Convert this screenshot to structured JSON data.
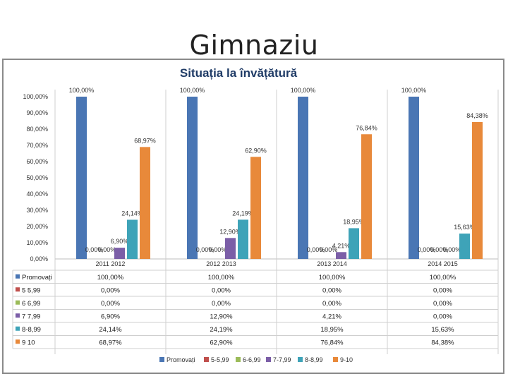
{
  "slide": {
    "title": "Gimnaziu"
  },
  "chart_data": {
    "type": "bar",
    "title": "Situația la învățătură",
    "categories": [
      "2011  2012",
      "2012  2013",
      "2013  2014",
      "2014  2015"
    ],
    "ylim": [
      0,
      100
    ],
    "yticks": [
      "0,00%",
      "10,00%",
      "20,00%",
      "30,00%",
      "40,00%",
      "50,00%",
      "60,00%",
      "70,00%",
      "80,00%",
      "90,00%",
      "100,00%"
    ],
    "grid": false,
    "legend_position": "bottom",
    "series": [
      {
        "name": "Promovați",
        "color": "#4a76b4",
        "values": [
          100.0,
          100.0,
          100.0,
          100.0
        ],
        "labels": [
          "100,00%",
          "100,00%",
          "100,00%",
          "100,00%"
        ]
      },
      {
        "name": "5-5,99",
        "color": "#c0504d",
        "values": [
          0,
          0,
          0,
          0
        ],
        "labels": [
          "0,00%",
          "0,00%",
          "0,00%",
          "0,00%"
        ]
      },
      {
        "name": "6-6,99",
        "color": "#9bbb59",
        "values": [
          0,
          0,
          0,
          0
        ],
        "labels": [
          "0,00%",
          "0,00%",
          "0,00%",
          "0,00%"
        ]
      },
      {
        "name": "7-7,99",
        "color": "#7b5ea7",
        "values": [
          6.9,
          12.9,
          4.21,
          0.0
        ],
        "labels": [
          "6,90%",
          "12,90%",
          "4,21%",
          "0,00%"
        ]
      },
      {
        "name": "8-8,99",
        "color": "#3ea3b8",
        "values": [
          24.14,
          24.19,
          18.95,
          15.63
        ],
        "labels": [
          "24,14%",
          "24,19%",
          "18,95%",
          "15,63%"
        ]
      },
      {
        "name": "9-10",
        "color": "#e8893a",
        "values": [
          68.97,
          62.9,
          76.84,
          84.38
        ],
        "labels": [
          "68,97%",
          "62,90%",
          "76,84%",
          "84,38%"
        ]
      }
    ],
    "table": {
      "row_labels": [
        "Promovați",
        "5 5,99",
        "6 6,99",
        "7 7,99",
        "8-8,99",
        "9 10"
      ],
      "rows": [
        [
          "100,00%",
          "100,00%",
          "100,00%",
          "100,00%"
        ],
        [
          "0,00%",
          "0,00%",
          "0,00%",
          "0,00%"
        ],
        [
          "0,00%",
          "0,00%",
          "0,00%",
          "0,00%"
        ],
        [
          "6,90%",
          "12,90%",
          "4,21%",
          "0,00%"
        ],
        [
          "24,14%",
          "24,19%",
          "18,95%",
          "15,63%"
        ],
        [
          "68,97%",
          "62,90%",
          "76,84%",
          "84,38%"
        ]
      ]
    }
  }
}
